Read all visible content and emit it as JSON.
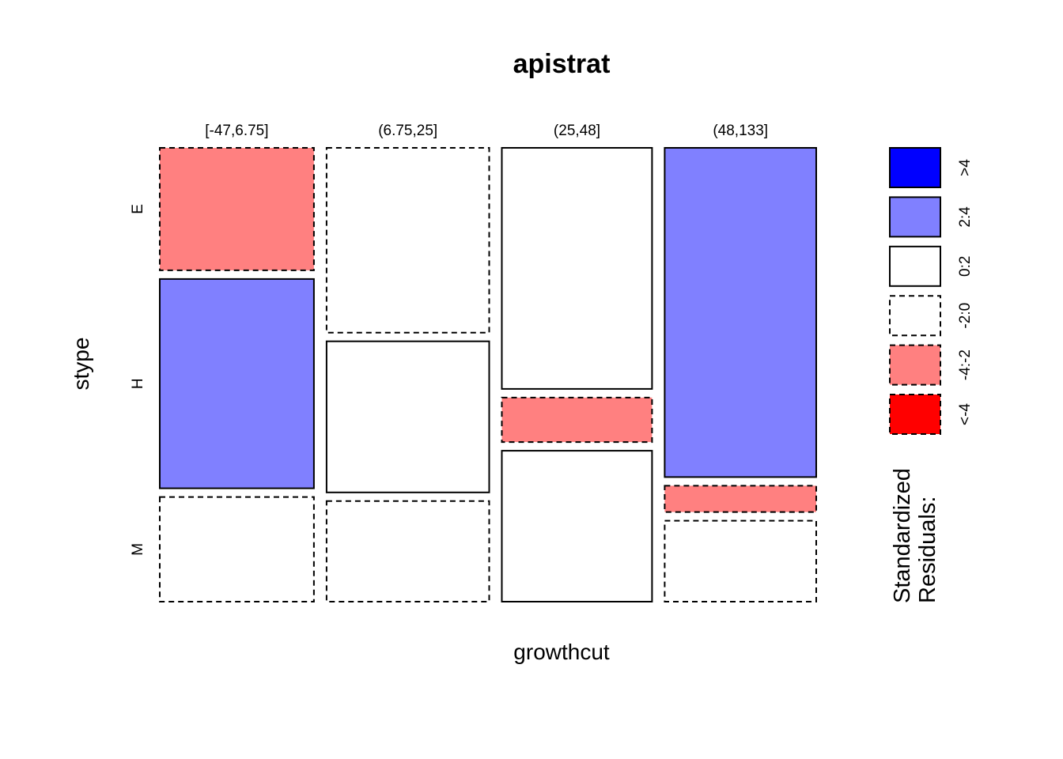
{
  "chart_data": {
    "type": "mosaic",
    "title": "apistrat",
    "xlabel": "growthcut",
    "ylabel": "stype",
    "x_categories": [
      "[-47,6.75]",
      "(6.75,25]",
      "(25,48]",
      "(48,133]"
    ],
    "y_categories": [
      "E",
      "H",
      "M"
    ],
    "column_proportions": [
      0.236,
      0.249,
      0.23,
      0.232
    ],
    "cells": [
      {
        "x": "[-47,6.75]",
        "proportions": [
          0.275,
          0.47,
          0.235
        ],
        "residual_classes": [
          "-4:-2",
          "2:4",
          "-2:0"
        ]
      },
      {
        "x": "(6.75,25]",
        "proportions": [
          0.417,
          0.341,
          0.227
        ],
        "residual_classes": [
          "-2:0",
          "0:2",
          "-2:0"
        ]
      },
      {
        "x": "(25,48]",
        "proportions": [
          0.543,
          0.1,
          0.34
        ],
        "residual_classes": [
          "0:2",
          "-4:-2",
          "0:2"
        ]
      },
      {
        "x": "(48,133]",
        "proportions": [
          0.74,
          0.059,
          0.182
        ],
        "residual_classes": [
          "2:4",
          "-4:-2",
          "-2:0"
        ]
      }
    ],
    "legend": {
      "title_lines": [
        "Standardized",
        "Residuals:"
      ],
      "placement": "right",
      "entries": [
        {
          "label": ">4",
          "color": "#0000FF",
          "dashed": false
        },
        {
          "label": "2:4",
          "color": "#8080FF",
          "dashed": false
        },
        {
          "label": "0:2",
          "color": "#FFFFFF",
          "dashed": false
        },
        {
          "label": "-2:0",
          "color": "#FFFFFF",
          "dashed": true
        },
        {
          "label": "-4:-2",
          "color": "#FF8080",
          "dashed": true
        },
        {
          "label": "<-4",
          "color": "#FF0000",
          "dashed": true
        }
      ]
    }
  }
}
